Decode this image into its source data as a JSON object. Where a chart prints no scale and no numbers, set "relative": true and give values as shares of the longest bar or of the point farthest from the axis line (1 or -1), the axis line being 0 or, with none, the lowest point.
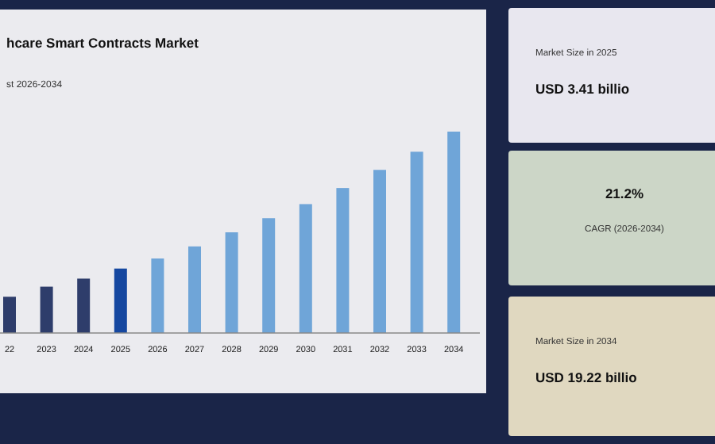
{
  "chart_data": [
    {
      "type": "bar",
      "title": "hcare Smart Contracts Market",
      "subtitle": "st 2026-2034",
      "relative": true,
      "categories": [
        "22",
        "2023",
        "2024",
        "2025",
        "2026",
        "2027",
        "2028",
        "2029",
        "2030",
        "2031",
        "2032",
        "2033",
        "2034"
      ],
      "values": [
        0.18,
        0.23,
        0.27,
        0.32,
        0.37,
        0.43,
        0.5,
        0.57,
        0.64,
        0.72,
        0.81,
        0.9,
        1
      ],
      "colors": [
        "#2e3d6b",
        "#2e3d6b",
        "#2e3d6b",
        "#1547a0",
        "#6fa5d8",
        "#6fa5d8",
        "#6fa5d8",
        "#6fa5d8",
        "#6fa5d8",
        "#6fa5d8",
        "#6fa5d8",
        "#6fa5d8",
        "#6fa5d8"
      ]
    },
    {
      "type": "other",
      "annotations": [
        "Market Size in 2025",
        "USD 3.41 billio",
        "21.2%",
        "CAGR (2026-2034)",
        "Market Size in 2034",
        "USD 19.22 billio"
      ]
    }
  ]
}
